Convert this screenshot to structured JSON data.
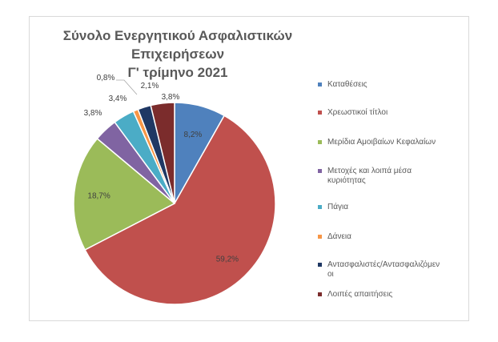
{
  "chart_data": {
    "type": "pie",
    "title": [
      "Σύνολο Ενεργητικού Ασφαλιστικών Επιχειρήσεων",
      "Γ' τρίμηνο 2021"
    ],
    "categories": [
      "Καταθέσεις",
      "Χρεωστικοί τίτλοι",
      "Μερίδια Αμοιβαίων Κεφαλαίων",
      "Μετοχές και λοιπά μέσα κυριότητας",
      "Πάγια",
      "Δάνεια",
      "Αντασφαλιστές/Αντασφαλιζόμενοι",
      "Λοιπές απαιτήσεις"
    ],
    "legend_lines": [
      [
        "Καταθέσεις"
      ],
      [
        "Χρεωστικοί τίτλοι"
      ],
      [
        "Μερίδια Αμοιβαίων Κεφαλαίων"
      ],
      [
        "Μετοχές και λοιπά μέσα",
        "κυριότητας"
      ],
      [
        "Πάγια"
      ],
      [
        "Δάνεια"
      ],
      [
        "Αντασφαλιστές/Αντασφαλιζόμεν",
        "οι"
      ],
      [
        "Λοιπές απαιτήσεις"
      ]
    ],
    "values": [
      8.2,
      59.2,
      18.7,
      3.8,
      3.4,
      0.8,
      2.1,
      3.8
    ],
    "labels": [
      "8,2%",
      "59,2%",
      "18,7%",
      "3,8%",
      "3,4%",
      "0,8%",
      "2,1%",
      "3,8%"
    ],
    "colors": [
      "#4f81bd",
      "#c0504d",
      "#9bbb59",
      "#8064a2",
      "#4bacc6",
      "#f79646",
      "#1f3864",
      "#7b2c2c"
    ],
    "legend_position": "right"
  }
}
